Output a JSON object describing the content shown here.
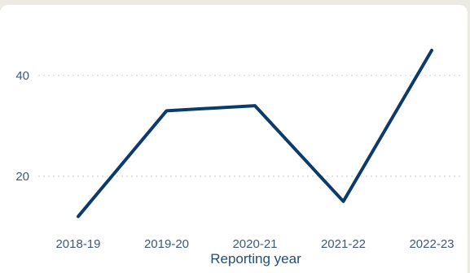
{
  "chart_data": {
    "type": "line",
    "categories": [
      "2018-19",
      "2019-20",
      "2020-21",
      "2021-22",
      "2022-23"
    ],
    "series": [
      {
        "values": [
          12,
          33,
          34,
          15,
          45
        ]
      }
    ],
    "yticks": [
      20,
      40
    ],
    "ylim": [
      9,
      50
    ],
    "xlabel": "Reporting year",
    "ylabel": "",
    "title": "",
    "grid": "horizontal dotted",
    "colors": {
      "line": "#0b3a6b",
      "grid": "#d6d6d6",
      "tick_text": "#3e5a78",
      "axis_title": "#1f4e79"
    }
  }
}
